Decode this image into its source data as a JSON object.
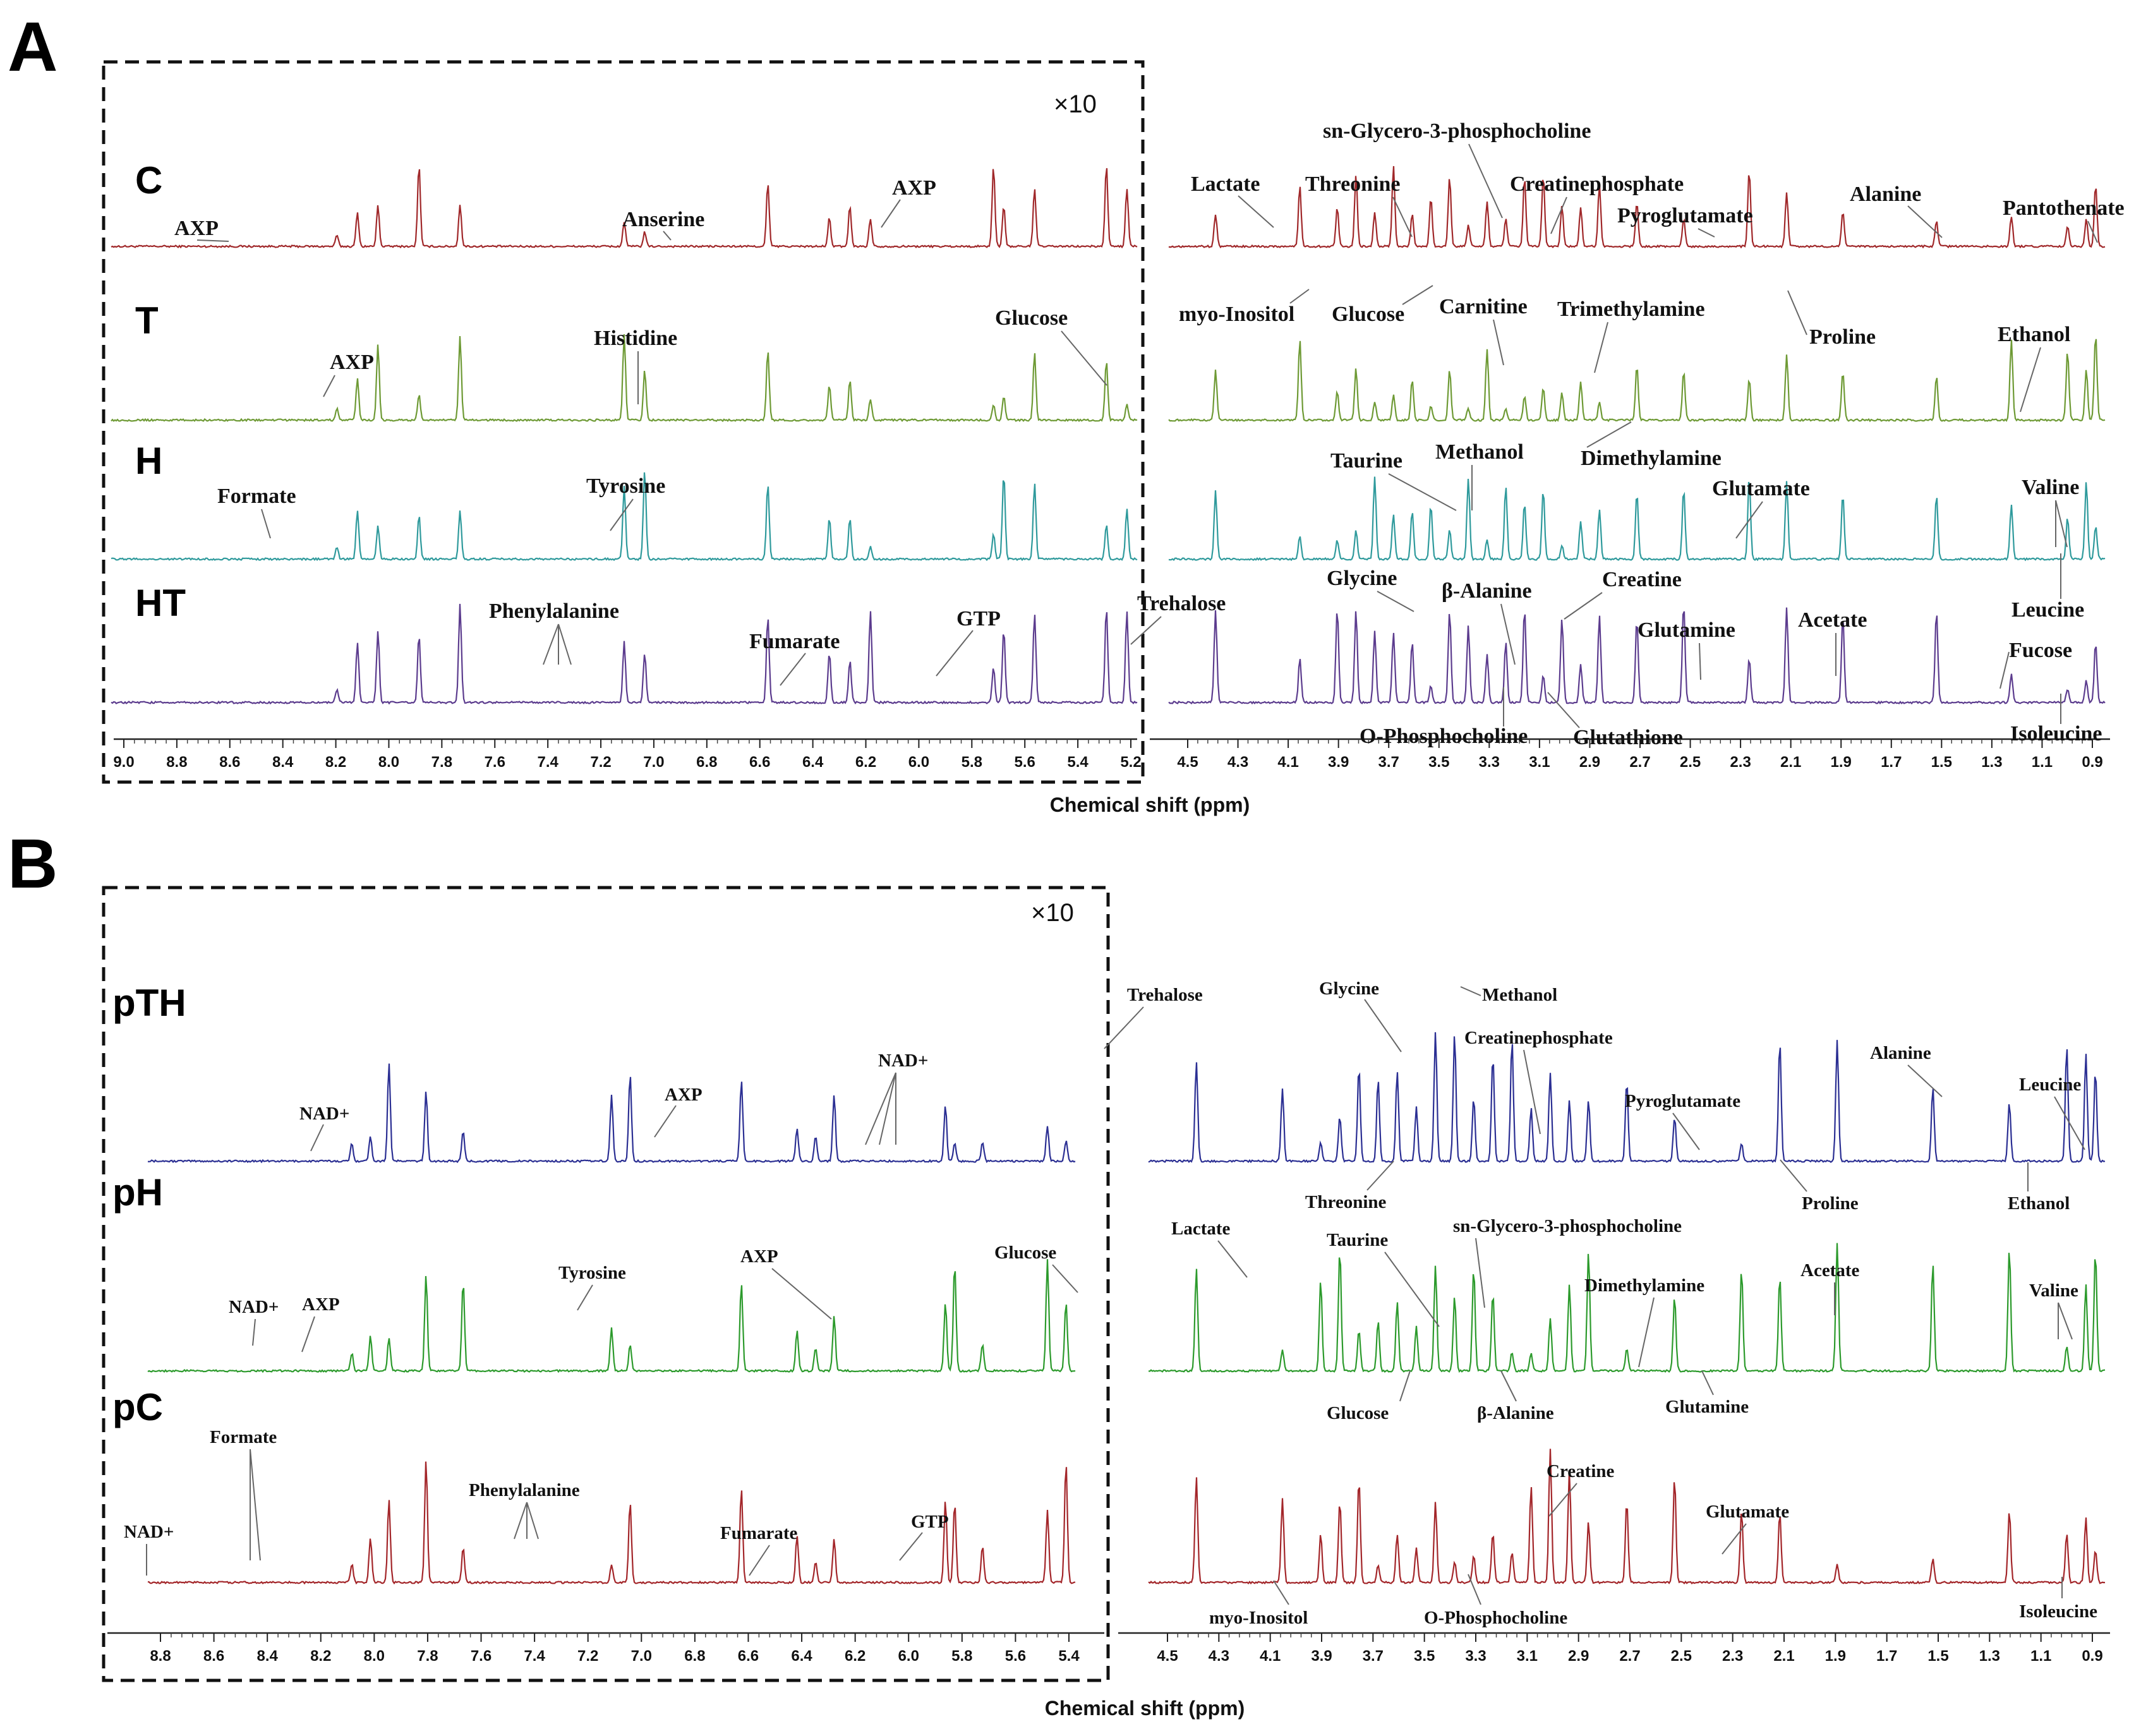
{
  "chart_data": [
    {
      "type": "line",
      "panel": "A",
      "title": "",
      "xlabel": "Chemical shift (ppm)",
      "ylabel": "",
      "xaxis_reversed": true,
      "scale_note": "×10",
      "grid": false,
      "x_ticks_left": [
        "9.0",
        "8.8",
        "8.6",
        "8.4",
        "8.2",
        "8.0",
        "7.8",
        "7.6",
        "7.4",
        "7.2",
        "7.0",
        "6.8",
        "6.6",
        "6.4",
        "6.2",
        "6.0",
        "5.8",
        "5.6",
        "5.4",
        "5.2"
      ],
      "x_ticks_right": [
        "4.5",
        "4.3",
        "4.1",
        "3.9",
        "3.7",
        "3.5",
        "3.3",
        "3.1",
        "2.9",
        "2.7",
        "2.5",
        "2.3",
        "2.1",
        "1.9",
        "1.7",
        "1.5",
        "1.3",
        "1.1",
        "0.9"
      ],
      "series": [
        {
          "name": "C",
          "color": "#a0282a"
        },
        {
          "name": "T",
          "color": "#6e9a35"
        },
        {
          "name": "H",
          "color": "#2f9a9c"
        },
        {
          "name": "HT",
          "color": "#5c3c8e"
        }
      ],
      "annotations": [
        "AXP",
        "Anserine",
        "AXP",
        "Lactate",
        "Threonine",
        "sn-Glycero-3-phosphocholine",
        "Creatinephosphate",
        "Pyroglutamate",
        "Alanine",
        "Pantothenate",
        "AXP",
        "Histidine",
        "Glucose",
        "myo-Inositol",
        "Glucose",
        "Carnitine",
        "Trimethylamine",
        "Proline",
        "Ethanol",
        "Formate",
        "Tyrosine",
        "Taurine",
        "Methanol",
        "Dimethylamine",
        "Glutamate",
        "Valine",
        "Phenylalanine",
        "Fumarate",
        "GTP",
        "Trehalose",
        "Glycine",
        "β-Alanine",
        "Creatine",
        "Glutamine",
        "Acetate",
        "Leucine",
        "Fucose",
        "O-Phosphocholine",
        "Glutathione",
        "Isoleucine"
      ]
    },
    {
      "type": "line",
      "panel": "B",
      "title": "",
      "xlabel": "Chemical shift (ppm)",
      "ylabel": "",
      "xaxis_reversed": true,
      "scale_note": "×10",
      "grid": false,
      "x_ticks_left": [
        "8.8",
        "8.6",
        "8.4",
        "8.2",
        "8.0",
        "7.8",
        "7.6",
        "7.4",
        "7.2",
        "7.0",
        "6.8",
        "6.6",
        "6.4",
        "6.2",
        "6.0",
        "5.8",
        "5.6",
        "5.4"
      ],
      "x_ticks_right": [
        "4.5",
        "4.3",
        "4.1",
        "3.9",
        "3.7",
        "3.5",
        "3.3",
        "3.1",
        "2.9",
        "2.7",
        "2.5",
        "2.3",
        "2.1",
        "1.9",
        "1.7",
        "1.5",
        "1.3",
        "1.1",
        "0.9"
      ],
      "series": [
        {
          "name": "pTH",
          "color": "#2b2f93"
        },
        {
          "name": "pH",
          "color": "#2c9a2c"
        },
        {
          "name": "pC",
          "color": "#a3262a"
        }
      ],
      "annotations": [
        "Trehalose",
        "Glycine",
        "Methanol",
        "Creatinephosphate",
        "NAD+",
        "AXP",
        "NAD+",
        "Alanine",
        "Leucine",
        "Pyroglutamate",
        "Threonine",
        "Proline",
        "Ethanol",
        "Lactate",
        "sn-Glycero-3-phosphocholine",
        "Taurine",
        "NAD+",
        "AXP",
        "Tyrosine",
        "AXP",
        "Glucose",
        "Dimethylamine",
        "Acetate",
        "Valine",
        "Glucose",
        "β-Alanine",
        "Glutamine",
        "Formate",
        "NAD+",
        "Phenylalanine",
        "Fumarate",
        "GTP",
        "Creatine",
        "Glutamate",
        "myo-Inositol",
        "O-Phosphocholine",
        "Isoleucine"
      ]
    }
  ]
}
